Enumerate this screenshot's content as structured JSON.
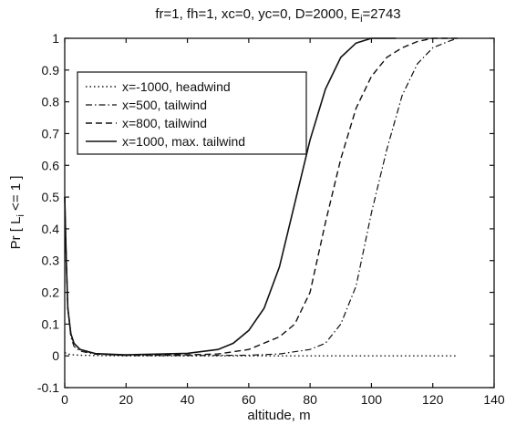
{
  "chart_data": {
    "type": "line",
    "title": "fr=1, fh=1, xc=0, yc=0, D=2000, E",
    "title_subscript": "i",
    "title_suffix": "=2743",
    "xlabel": "altitude, m",
    "ylabel": "Pr [ L",
    "ylabel_subscript": "i",
    "ylabel_suffix": " <= 1 ]",
    "xlim": [
      0,
      140
    ],
    "ylim": [
      -0.1,
      1
    ],
    "x_ticks": [
      0,
      20,
      40,
      60,
      80,
      100,
      120,
      140
    ],
    "y_ticks": [
      -0.1,
      0,
      0.1,
      0.2,
      0.3,
      0.4,
      0.5,
      0.6,
      0.7,
      0.8,
      0.9,
      1
    ],
    "x_tick_labels": [
      "0",
      "20",
      "40",
      "60",
      "80",
      "100",
      "120",
      "140"
    ],
    "y_tick_labels": [
      "-0.1",
      "0",
      "0.1",
      "0.2",
      "0.3",
      "0.4",
      "0.5",
      "0.6",
      "0.7",
      "0.8",
      "0.9",
      "1"
    ],
    "grid": false,
    "legend_position": "top-left",
    "series": [
      {
        "name": "x=-1000, headwind",
        "style": "dotted",
        "color": "#111111",
        "x": [
          0,
          0.5,
          1,
          2,
          3,
          5,
          10,
          20,
          40,
          60,
          80,
          100,
          128
        ],
        "y": [
          0.01,
          0.008,
          0.006,
          0.004,
          0.003,
          0.002,
          0.001,
          0,
          0,
          0,
          0,
          0,
          0
        ]
      },
      {
        "name": "x=500, tailwind",
        "style": "dash-dot",
        "color": "#111111",
        "x": [
          0,
          0.5,
          1,
          2,
          3,
          5,
          10,
          20,
          40,
          60,
          70,
          80,
          85,
          90,
          95,
          100,
          105,
          110,
          115,
          120,
          125,
          128
        ],
        "y": [
          0.5,
          0.3,
          0.15,
          0.06,
          0.03,
          0.015,
          0.005,
          0.001,
          0.001,
          0.002,
          0.006,
          0.02,
          0.04,
          0.1,
          0.22,
          0.45,
          0.65,
          0.82,
          0.92,
          0.97,
          0.99,
          1
        ]
      },
      {
        "name": "x=800, tailwind",
        "style": "dashed",
        "color": "#111111",
        "x": [
          0,
          0.5,
          1,
          2,
          3,
          5,
          10,
          20,
          40,
          50,
          60,
          70,
          75,
          80,
          85,
          90,
          95,
          100,
          105,
          110,
          115,
          120,
          125,
          128
        ],
        "y": [
          0.5,
          0.3,
          0.15,
          0.07,
          0.04,
          0.02,
          0.006,
          0.002,
          0.003,
          0.006,
          0.02,
          0.06,
          0.1,
          0.2,
          0.42,
          0.62,
          0.78,
          0.88,
          0.94,
          0.97,
          0.99,
          1,
          1,
          1
        ]
      },
      {
        "name": "x=1000, max. tailwind",
        "style": "solid",
        "color": "#111111",
        "x": [
          0,
          0.5,
          1,
          2,
          3,
          5,
          10,
          20,
          40,
          50,
          55,
          60,
          65,
          70,
          75,
          80,
          85,
          90,
          95,
          100,
          105,
          108
        ],
        "y": [
          0.5,
          0.3,
          0.15,
          0.07,
          0.04,
          0.02,
          0.007,
          0.003,
          0.008,
          0.02,
          0.04,
          0.08,
          0.15,
          0.28,
          0.48,
          0.68,
          0.84,
          0.94,
          0.985,
          1,
          1,
          1
        ]
      }
    ]
  }
}
